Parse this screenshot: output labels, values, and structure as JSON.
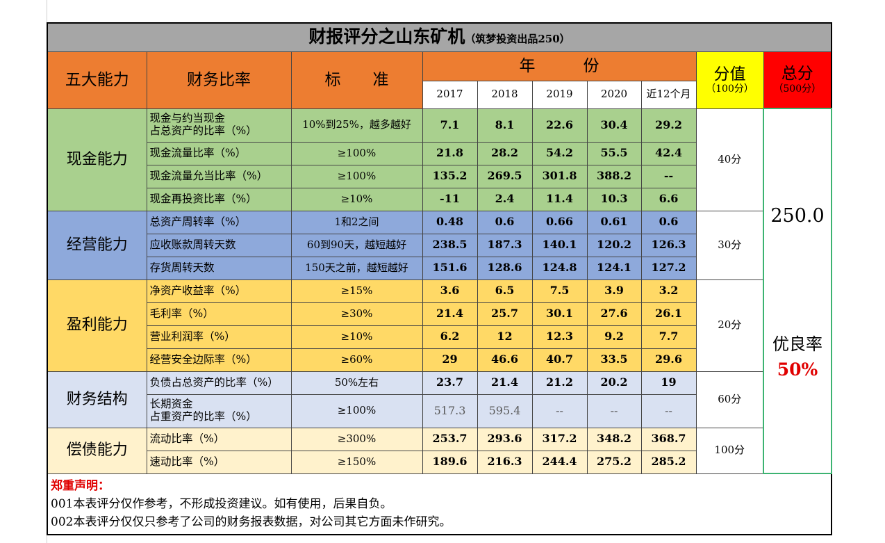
{
  "title": "财报评分之山东矿机",
  "title_note": "（筑梦投资出品250）",
  "headers": {
    "ability": "五大能力",
    "ratio": "财务比率",
    "standard": "标　　准",
    "year": "年　　　份",
    "years": [
      "2017",
      "2018",
      "2019",
      "2020",
      "近12个月"
    ],
    "score": "分值",
    "score_note": "（100分）",
    "total": "总分",
    "total_note": "（500分）"
  },
  "groups": [
    {
      "name": "现金能力",
      "score": "40分",
      "color": "#a9d08e",
      "rows": [
        {
          "ratio": "现金与约当现金\n占总资产的比率（%）",
          "standard": "10%到25%，越多越好",
          "values": [
            7.1,
            8.1,
            22.6,
            30.4,
            29.2
          ]
        },
        {
          "ratio": "现金流量比率（%）",
          "standard": "≥100%",
          "values": [
            21.8,
            28.2,
            54.2,
            55.5,
            42.4
          ]
        },
        {
          "ratio": "现金流量允当比率（%）",
          "standard": "≥100%",
          "values": [
            135.2,
            269.5,
            301.8,
            388.2,
            "--"
          ]
        },
        {
          "ratio": "现金再投资比率（%）",
          "standard": "≥10%",
          "values": [
            -11,
            2.4,
            11.4,
            10.3,
            6.6
          ]
        }
      ]
    },
    {
      "name": "经营能力",
      "score": "30分",
      "color": "#8ea9db",
      "rows": [
        {
          "ratio": "总资产周转率（%）",
          "standard": "1和2之间",
          "values": [
            0.48,
            0.6,
            0.66,
            0.61,
            0.6
          ]
        },
        {
          "ratio": "应收账款周转天数",
          "standard": "60到90天，越短越好",
          "values": [
            238.5,
            187.3,
            140.1,
            120.2,
            126.3
          ]
        },
        {
          "ratio": "存货周转天数",
          "standard": "150天之前，越短越好",
          "values": [
            151.6,
            128.6,
            124.8,
            124.1,
            127.2
          ]
        }
      ]
    },
    {
      "name": "盈利能力",
      "score": "20分",
      "color": "#ffd966",
      "rows": [
        {
          "ratio": "净资产收益率（%）",
          "standard": "≥15%",
          "values": [
            3.6,
            6.5,
            7.5,
            3.9,
            3.2
          ]
        },
        {
          "ratio": "毛利率（%）",
          "standard": "≥30%",
          "values": [
            21.4,
            25.7,
            30.1,
            27.6,
            26.1
          ]
        },
        {
          "ratio": "营业利润率（%）",
          "standard": "≥10%",
          "values": [
            6.2,
            12,
            12.3,
            9.2,
            7.7
          ]
        },
        {
          "ratio": "经营安全边际率（%）",
          "standard": "≥60%",
          "values": [
            29,
            46.6,
            40.7,
            33.5,
            29.6
          ]
        }
      ]
    },
    {
      "name": "财务结构",
      "score": "60分",
      "color": "#d9e1f2",
      "rows": [
        {
          "ratio": "负债占总资产的比率（%）",
          "standard": "50%左右",
          "values": [
            23.7,
            21.4,
            21.2,
            20.2,
            19
          ]
        },
        {
          "ratio": "长期资金\n占重资产的比率（%）",
          "standard": "≥100%",
          "values": [
            517.3,
            595.4,
            "--",
            "--",
            "--"
          ]
        }
      ]
    },
    {
      "name": "偿债能力",
      "score": "100分",
      "color": "#fff2cc",
      "rows": [
        {
          "ratio": "流动比率（%）",
          "standard": "≥300%",
          "values": [
            253.7,
            293.6,
            317.2,
            348.2,
            368.7
          ]
        },
        {
          "ratio": "速动比率（%）",
          "standard": "≥150%",
          "values": [
            189.6,
            216.3,
            244.4,
            275.2,
            285.2
          ]
        }
      ]
    }
  ],
  "total_score": "250.0",
  "rate_label": "优良率",
  "rate": "50%",
  "notes": {
    "title": "郑重声明：",
    "lines": [
      "001本表评分仅作参考，不形成投资建议。如有使用，后果自负。",
      "002本表评分仅仅只参考了公司的财务报表数据，对公司其它方面未作研究。"
    ]
  }
}
